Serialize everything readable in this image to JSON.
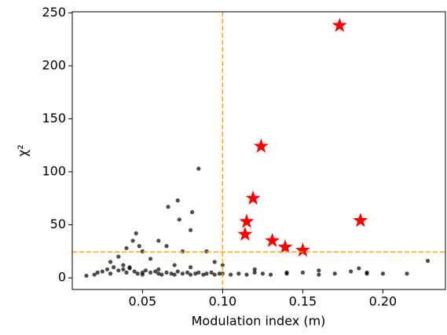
{
  "chart_data": {
    "type": "scatter",
    "xlabel": "Modulation index (m)",
    "ylabel": "χ²",
    "xlim": [
      0.0062,
      0.239
    ],
    "ylim": [
      -11,
      251
    ],
    "xticks": [
      0.05,
      {
        "value": 0.1,
        "label": "0.10"
      },
      0.15,
      {
        "value": 0.2,
        "label": "0.20"
      }
    ],
    "yticks": [
      0,
      50,
      100,
      150,
      200,
      250
    ],
    "reference_lines": {
      "x": [
        0.1
      ],
      "y": [
        24.4
      ],
      "color": "#ffa500"
    },
    "series": [
      {
        "marker": "dot",
        "color": "#000000",
        "x": [
          0.015,
          0.02,
          0.022,
          0.025,
          0.028,
          0.03,
          0.032,
          0.035,
          0.038,
          0.04,
          0.042,
          0.045,
          0.047,
          0.05,
          0.052,
          0.055,
          0.058,
          0.06,
          0.062,
          0.065,
          0.068,
          0.07,
          0.072,
          0.075,
          0.078,
          0.08,
          0.083,
          0.085,
          0.088,
          0.09,
          0.093,
          0.095,
          0.098,
          0.1,
          0.105,
          0.11,
          0.115,
          0.12,
          0.125,
          0.13,
          0.14,
          0.15,
          0.16,
          0.17,
          0.18,
          0.19,
          0.2,
          0.215,
          0.228,
          0.085,
          0.066,
          0.072,
          0.081,
          0.073,
          0.046,
          0.044,
          0.04,
          0.048,
          0.05,
          0.035,
          0.03,
          0.055,
          0.06,
          0.065,
          0.075,
          0.08,
          0.09,
          0.095,
          0.1,
          0.042,
          0.038,
          0.05,
          0.06,
          0.07,
          0.08,
          0.12,
          0.14,
          0.16,
          0.185,
          0.19
        ],
        "values": [
          2,
          3,
          5,
          6,
          8,
          4,
          10,
          7,
          12,
          5,
          9,
          6,
          4,
          3,
          7,
          5,
          6,
          4,
          3,
          5,
          4,
          3,
          6,
          4,
          5,
          3,
          4,
          5,
          3,
          4,
          5,
          3,
          4,
          4,
          3,
          4,
          3,
          5,
          4,
          3,
          4,
          5,
          3,
          4,
          6,
          4,
          4,
          4,
          16,
          103,
          67,
          73,
          62,
          55,
          42,
          35,
          28,
          30,
          25,
          20,
          15,
          18,
          35,
          30,
          25,
          45,
          25,
          15,
          12,
          10,
          8,
          5,
          8,
          12,
          10,
          8,
          5,
          7,
          9,
          5
        ]
      },
      {
        "marker": "star",
        "color": "#ff0000",
        "x": [
          0.173,
          0.124,
          0.119,
          0.115,
          0.114,
          0.131,
          0.139,
          0.15,
          0.186
        ],
        "values": [
          238,
          124,
          75,
          53,
          41,
          35,
          29,
          26,
          54
        ]
      }
    ]
  }
}
